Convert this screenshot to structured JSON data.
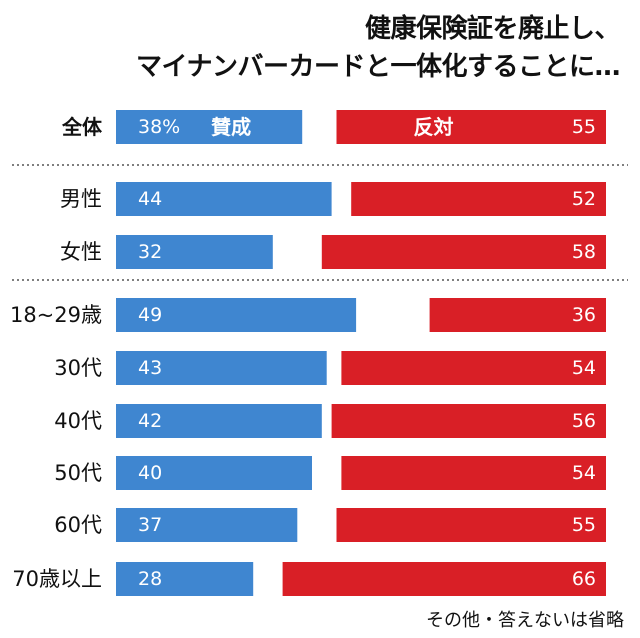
{
  "title_line1": "健康保険証を廃止し、",
  "title_line2": "マイナンバーカードと一体化することに…",
  "note": "その他・答えないは省略",
  "colors": {
    "support": "#3f86d0",
    "oppose": "#d91f26"
  },
  "chart_data": {
    "type": "bar",
    "orientation": "horizontal",
    "categories": [
      "全体",
      "男性",
      "女性",
      "18~29歳",
      "30代",
      "40代",
      "50代",
      "60代",
      "70歳以上"
    ],
    "series": [
      {
        "name": "賛成",
        "values": [
          38,
          44,
          32,
          49,
          43,
          42,
          40,
          37,
          28
        ]
      },
      {
        "name": "反対",
        "values": [
          55,
          52,
          58,
          36,
          54,
          56,
          54,
          55,
          66
        ]
      }
    ],
    "first_value_suffix": "%",
    "xlim": [
      0,
      100
    ],
    "group_separators_after": [
      0,
      2
    ],
    "legend_placement": "inside first row"
  }
}
